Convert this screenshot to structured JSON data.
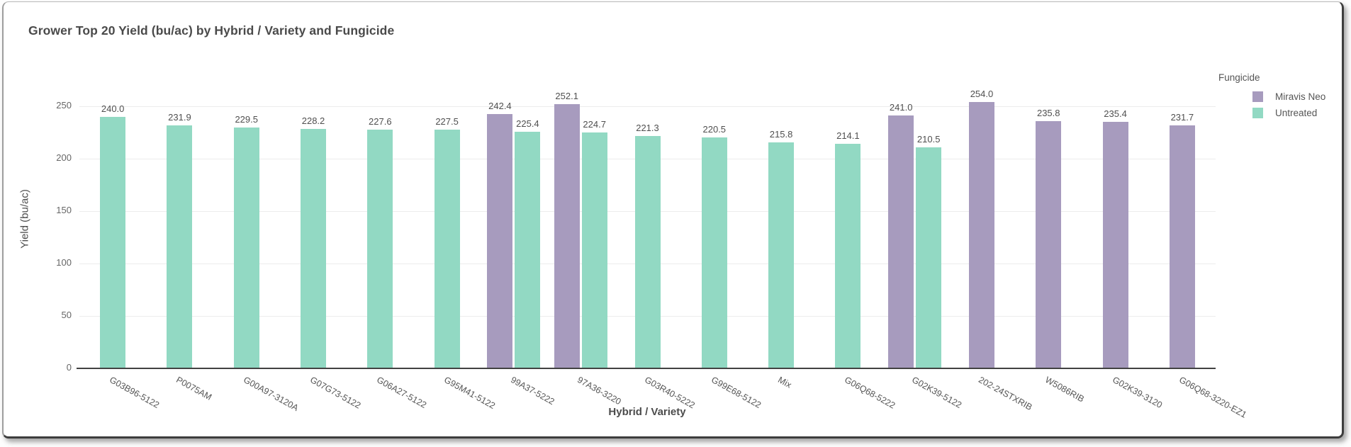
{
  "title": "Grower Top 20 Yield (bu/ac) by Hybrid / Variety and Fungicide",
  "chart_data": {
    "type": "bar",
    "title": "Grower Top 20 Yield (bu/ac) by Hybrid / Variety and Fungicide",
    "xlabel": "Hybrid / Variety",
    "ylabel": "Yield (bu/ac)",
    "ylim": [
      0,
      250
    ],
    "yticks": [
      0,
      50,
      100,
      150,
      200,
      250
    ],
    "grid": true,
    "series_colors": {
      "Miravis Neo": "#a79bbe",
      "Untreated": "#92d9c3"
    },
    "legend": {
      "title": "Fungicide",
      "position": "top-right",
      "entries": [
        {
          "label": "Miravis Neo",
          "color": "#a79bbe"
        },
        {
          "label": "Untreated",
          "color": "#92d9c3"
        }
      ]
    },
    "categories": [
      {
        "label": "G03B96-5122",
        "bars": [
          {
            "series": "Untreated",
            "value": 240.0,
            "value_label": "240.0"
          }
        ]
      },
      {
        "label": "P0075AM",
        "bars": [
          {
            "series": "Untreated",
            "value": 231.9,
            "value_label": "231.9"
          }
        ]
      },
      {
        "label": "G00A97-3120A",
        "bars": [
          {
            "series": "Untreated",
            "value": 229.5,
            "value_label": "229.5"
          }
        ]
      },
      {
        "label": "G07G73-5122",
        "bars": [
          {
            "series": "Untreated",
            "value": 228.2,
            "value_label": "228.2"
          }
        ]
      },
      {
        "label": "G06A27-5122",
        "bars": [
          {
            "series": "Untreated",
            "value": 227.6,
            "value_label": "227.6"
          }
        ]
      },
      {
        "label": "G95M41-5122",
        "bars": [
          {
            "series": "Untreated",
            "value": 227.5,
            "value_label": "227.5"
          }
        ]
      },
      {
        "label": "99A37-5222",
        "bars": [
          {
            "series": "Miravis Neo",
            "value": 242.4,
            "value_label": "242.4"
          },
          {
            "series": "Untreated",
            "value": 225.4,
            "value_label": "225.4"
          }
        ]
      },
      {
        "label": "97A36-3220",
        "bars": [
          {
            "series": "Miravis Neo",
            "value": 252.1,
            "value_label": "252.1"
          },
          {
            "series": "Untreated",
            "value": 224.7,
            "value_label": "224.7"
          }
        ]
      },
      {
        "label": "G03R40-5222",
        "bars": [
          {
            "series": "Untreated",
            "value": 221.3,
            "value_label": "221.3"
          }
        ]
      },
      {
        "label": "G99E68-5122",
        "bars": [
          {
            "series": "Untreated",
            "value": 220.5,
            "value_label": "220.5"
          }
        ]
      },
      {
        "label": "Mix",
        "bars": [
          {
            "series": "Untreated",
            "value": 215.8,
            "value_label": "215.8"
          }
        ]
      },
      {
        "label": "G06Q68-5222",
        "bars": [
          {
            "series": "Untreated",
            "value": 214.1,
            "value_label": "214.1"
          }
        ]
      },
      {
        "label": "G02K39-5122",
        "bars": [
          {
            "series": "Miravis Neo",
            "value": 241.0,
            "value_label": "241.0"
          },
          {
            "series": "Untreated",
            "value": 210.5,
            "value_label": "210.5"
          }
        ]
      },
      {
        "label": "202-24STXRIB",
        "bars": [
          {
            "series": "Miravis Neo",
            "value": 254.0,
            "value_label": "254.0"
          }
        ]
      },
      {
        "label": "W5086RIB",
        "bars": [
          {
            "series": "Miravis Neo",
            "value": 235.8,
            "value_label": "235.8"
          }
        ]
      },
      {
        "label": "G02K39-3120",
        "bars": [
          {
            "series": "Miravis Neo",
            "value": 235.4,
            "value_label": "235.4"
          }
        ]
      },
      {
        "label": "G06Q68-3220-EZ1",
        "bars": [
          {
            "series": "Miravis Neo",
            "value": 231.7,
            "value_label": "231.7"
          }
        ]
      }
    ]
  },
  "colors": {
    "grid": "#ececec",
    "axis_line": "#424242",
    "tick_text": "#666666",
    "label_text": "#4f4f4f",
    "title_text": "#4a4a4a"
  }
}
